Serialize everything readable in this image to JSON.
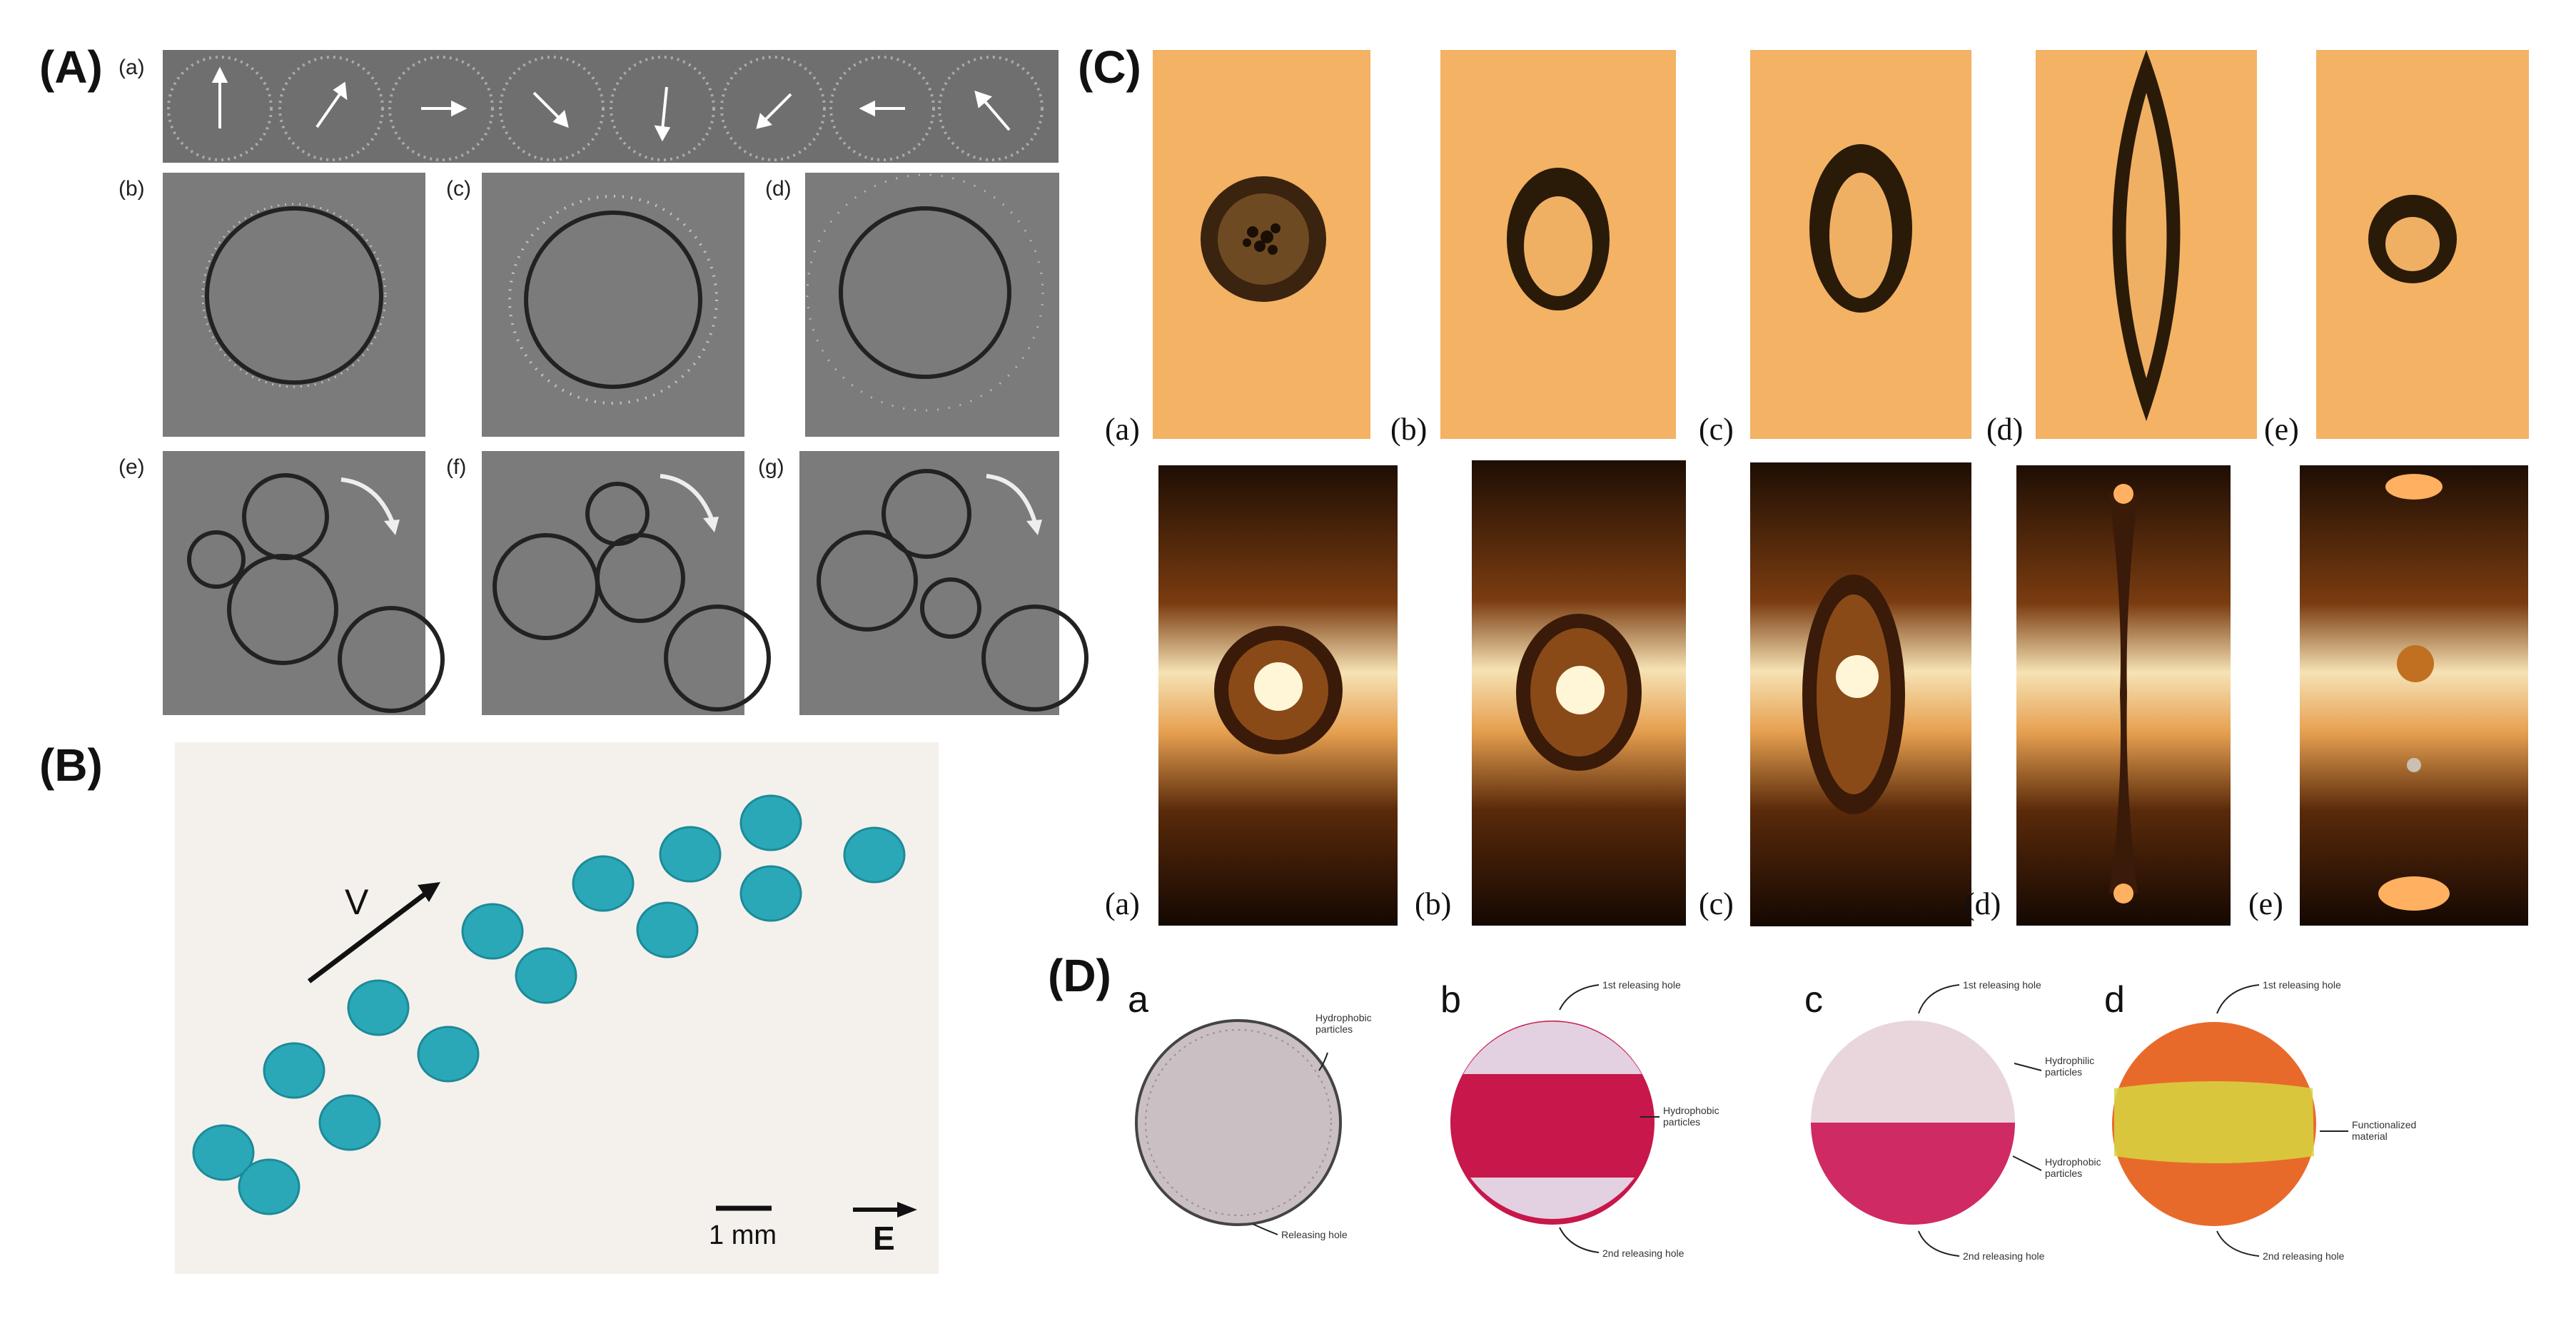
{
  "panel_A": {
    "label": "(A)",
    "sublabels": [
      "(a)",
      "(b)",
      "(c)",
      "(d)",
      "(e)",
      "(f)",
      "(g)"
    ]
  },
  "panel_B": {
    "label": "(B)",
    "velocity_label": "V",
    "scale_label": "1 mm",
    "field_label": "E"
  },
  "panel_C": {
    "label": "(C)",
    "top_row_labels": [
      "(a)",
      "(b)",
      "(c)",
      "(d)",
      "(e)"
    ],
    "bottom_row_labels": [
      "(a)",
      "(b)",
      "(c)",
      "(d)",
      "(e)"
    ]
  },
  "panel_D": {
    "label": "(D)",
    "sublabels": [
      "a",
      "b",
      "c",
      "d"
    ],
    "annotations": {
      "a_hydrophobic": "Hydrophobic\nparticles",
      "a_releasing": "Releasing hole",
      "b_first": "1st releasing hole",
      "b_hydrophobic": "Hydrophobic\nparticles",
      "b_second": "2nd releasing hole",
      "c_first": "1st releasing hole",
      "c_hydrophilic": "Hydrophilic\nparticles",
      "c_hydrophobic": "Hydrophobic\nparticles",
      "c_second": "2nd releasing hole",
      "d_first": "1st releasing hole",
      "d_functionalized": "Functionalized\nmaterial",
      "d_second": "2nd releasing hole"
    }
  },
  "colors": {
    "gray_bg": "#7b7b7b",
    "orange_bg": "#f3b264",
    "teal_droplet": "#2aa8b8",
    "crimson": "#c8174a"
  }
}
